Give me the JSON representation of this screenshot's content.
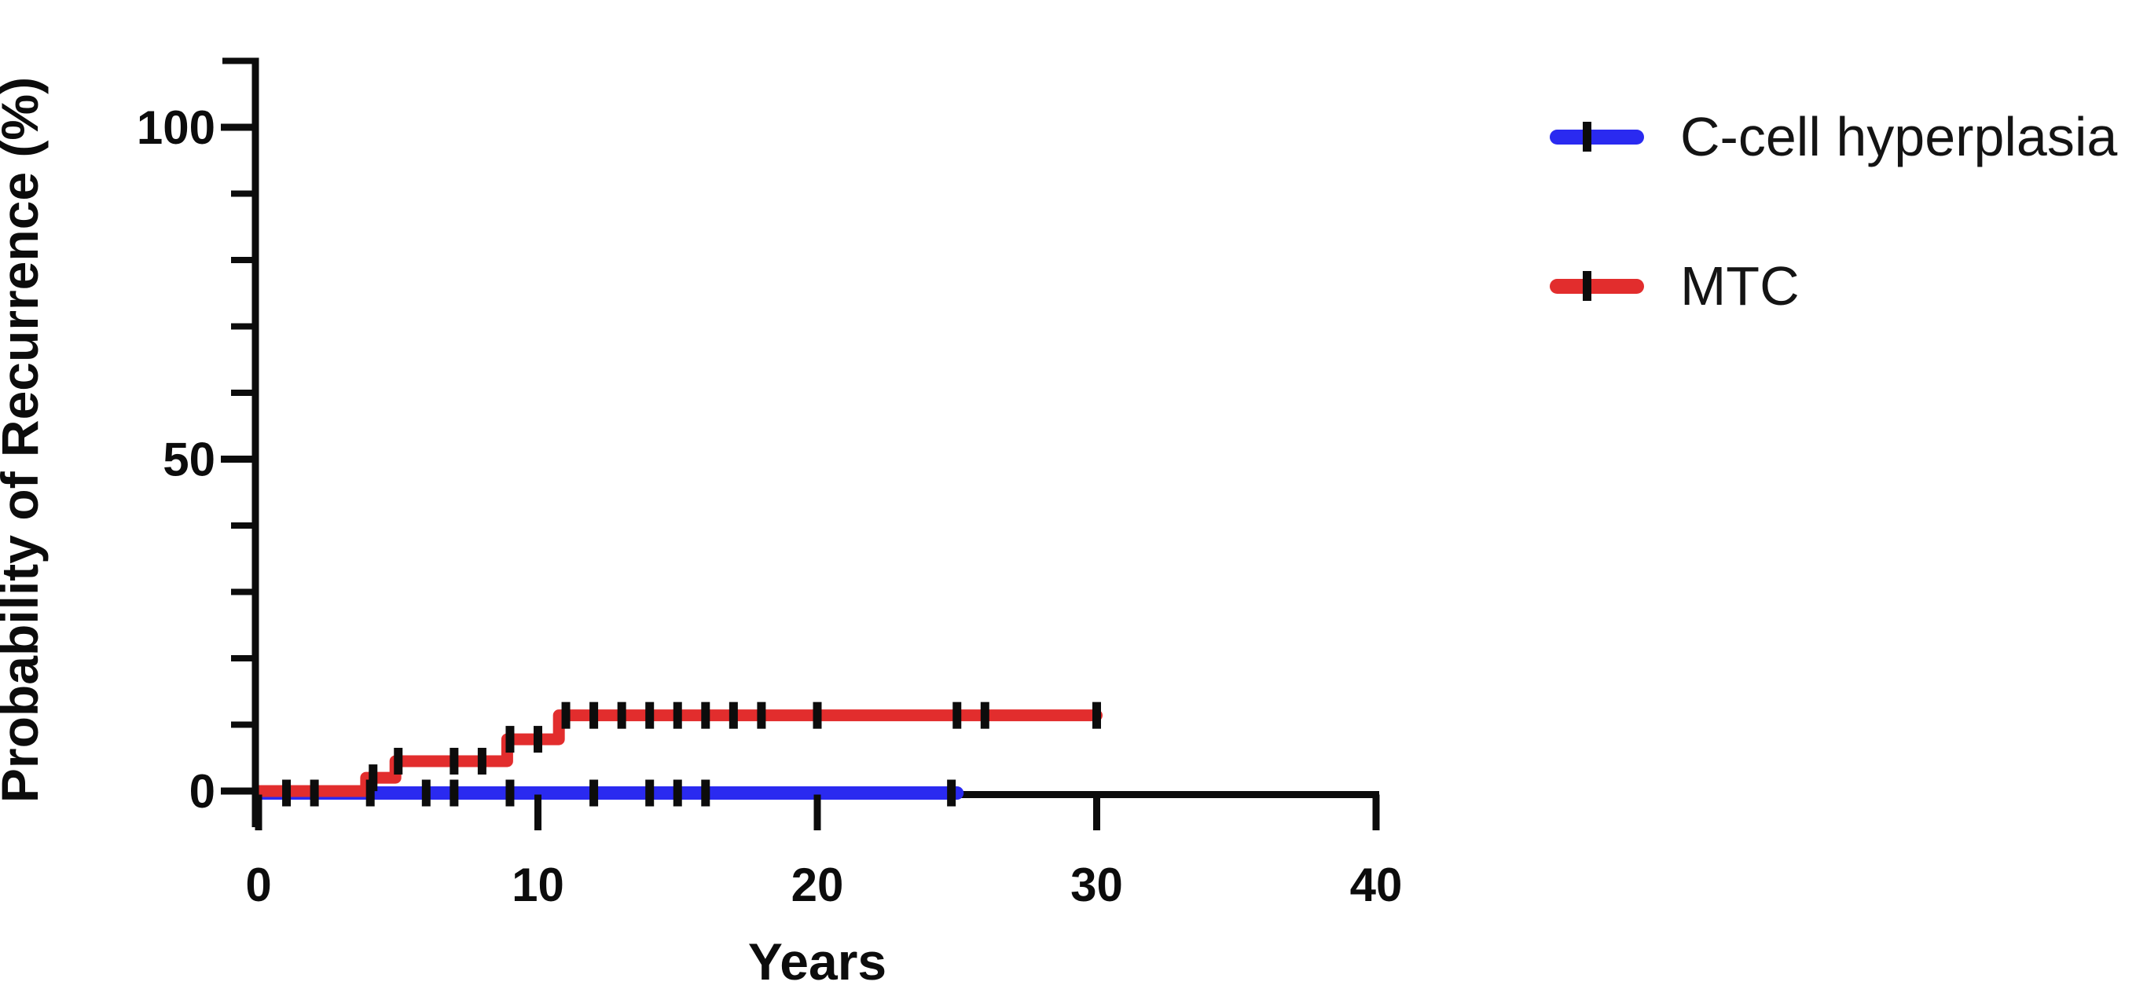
{
  "figure": {
    "background_color": "#ffffff",
    "text_color": "#0a0a0a"
  },
  "chart_data": {
    "type": "line",
    "subtype": "kaplan-meier-step",
    "title": "",
    "xlabel": "Years",
    "ylabel": "Probability of Recurrence (%)",
    "xlim": [
      0,
      40
    ],
    "ylim": [
      0,
      110
    ],
    "grid": false,
    "x_axis": {
      "major_ticks": [
        0,
        10,
        20,
        30,
        40
      ],
      "tick_labels": [
        "0",
        "10",
        "20",
        "30",
        "40"
      ],
      "minor_ticks": []
    },
    "y_axis": {
      "major_ticks": [
        0,
        50,
        100
      ],
      "tick_labels": [
        "0",
        "50",
        "100"
      ],
      "minor_ticks": [
        10,
        20,
        30,
        40,
        60,
        70,
        80,
        90
      ],
      "axis_end_value": 110
    },
    "legend": {
      "position": "top-right",
      "entries": [
        {
          "label": "C-cell hyperplasia",
          "color": "#2a2af0"
        },
        {
          "label": "MTC",
          "color": "#e22d2d"
        }
      ]
    },
    "series": [
      {
        "name": "C-cell hyperplasia",
        "color": "#2a2af0",
        "line_width": 17,
        "points": [
          [
            0,
            0
          ],
          [
            25,
            0
          ]
        ],
        "censor_marks_x": [
          1,
          2,
          4,
          6,
          7,
          9,
          12,
          14,
          15,
          16,
          24.8
        ]
      },
      {
        "name": "MTC",
        "color": "#e22d2d",
        "line_width": 15,
        "points": [
          [
            0,
            0
          ],
          [
            3.85,
            0
          ],
          [
            3.85,
            2
          ],
          [
            4.9,
            2
          ],
          [
            4.9,
            4.5
          ],
          [
            8.9,
            4.5
          ],
          [
            8.9,
            7.8
          ],
          [
            10.75,
            7.8
          ],
          [
            10.75,
            11.4
          ],
          [
            30,
            11.4
          ]
        ],
        "censor_marks_x": [
          4.1,
          5,
          7,
          8,
          9,
          10,
          11,
          12,
          13,
          14,
          15,
          16,
          17,
          18,
          20,
          25,
          26,
          30
        ]
      }
    ]
  }
}
